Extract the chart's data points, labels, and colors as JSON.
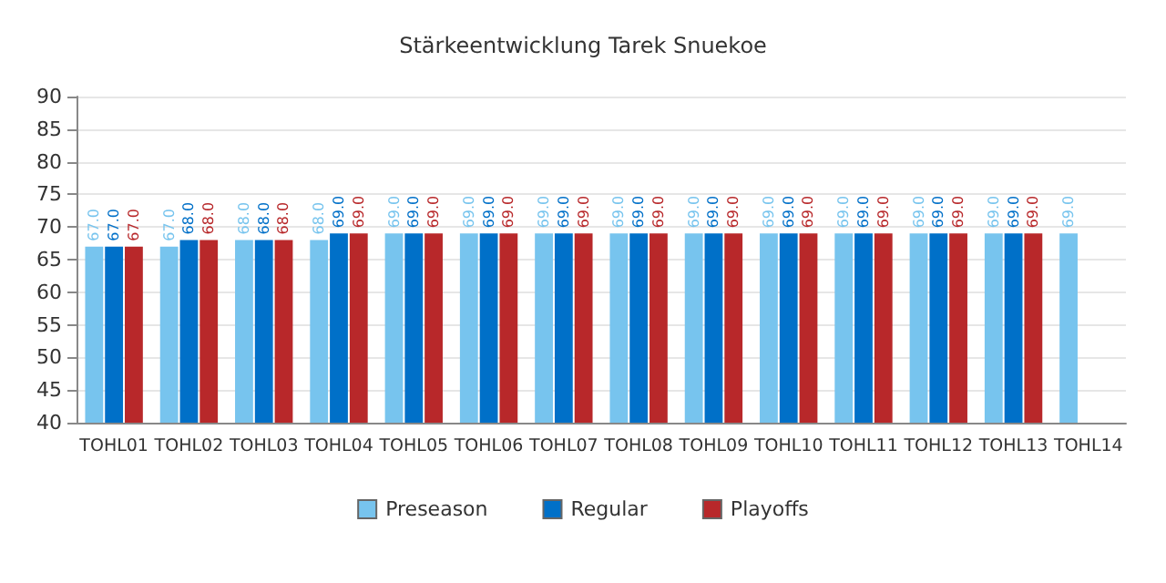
{
  "chart_data": {
    "type": "bar",
    "title": "Stärkeentwicklung Tarek Snuekoe",
    "categories": [
      "TOHL01",
      "TOHL02",
      "TOHL03",
      "TOHL04",
      "TOHL05",
      "TOHL06",
      "TOHL07",
      "TOHL08",
      "TOHL09",
      "TOHL10",
      "TOHL11",
      "TOHL12",
      "TOHL13",
      "TOHL14"
    ],
    "series": [
      {
        "name": "Preseason",
        "color": "#77c4ee",
        "values": [
          67,
          67,
          68,
          68,
          69,
          69,
          69,
          69,
          69,
          69,
          69,
          69,
          69,
          69
        ],
        "value_labels": [
          "67.0",
          "67.0",
          "68.0",
          "68.0",
          "69.0",
          "69.0",
          "69.0",
          "69.0",
          "69.0",
          "69.0",
          "69.0",
          "69.0",
          "69.0",
          "69.0"
        ]
      },
      {
        "name": "Regular",
        "color": "#0070c8",
        "values": [
          67,
          68,
          68,
          69,
          69,
          69,
          69,
          69,
          69,
          69,
          69,
          69,
          69,
          null
        ],
        "value_labels": [
          "67.0",
          "68.0",
          "68.0",
          "69.0",
          "69.0",
          "69.0",
          "69.0",
          "69.0",
          "69.0",
          "69.0",
          "69.0",
          "69.0",
          "69.0",
          null
        ]
      },
      {
        "name": "Playoffs",
        "color": "#b8282a",
        "values": [
          67,
          68,
          68,
          69,
          69,
          69,
          69,
          69,
          69,
          69,
          69,
          69,
          69,
          null
        ],
        "value_labels": [
          "67.0",
          "68.0",
          "68.0",
          "69.0",
          "69.0",
          "69.0",
          "69.0",
          "69.0",
          "69.0",
          "69.0",
          "69.0",
          "69.0",
          "69.0",
          null
        ]
      }
    ],
    "ylim": [
      40,
      90
    ],
    "yticks": [
      40,
      45,
      50,
      55,
      60,
      65,
      70,
      75,
      80,
      85,
      90
    ],
    "grid": "y",
    "legend": "bottom"
  }
}
